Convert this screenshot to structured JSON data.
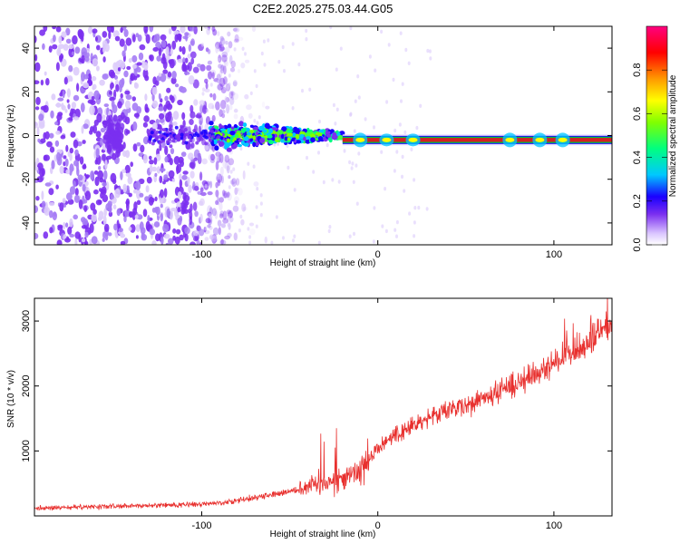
{
  "figure": {
    "title": "C2E2.2025.275.03.44.G05"
  },
  "colors": {
    "snr_line": "#e8302e",
    "spectro_violet": "#7b2ff0",
    "spectro_core": "#d42020",
    "spectro_ring": "#00c040",
    "frame": "#000000",
    "background": "#ffffff"
  },
  "chart_data": [
    {
      "type": "heatmap",
      "xlabel": "Height of straight line (km)",
      "ylabel": "Frequency (Hz)",
      "xlim": [
        -195,
        133
      ],
      "ylim": [
        -50,
        50
      ],
      "xticks": [
        -100,
        0,
        100
      ],
      "yticks": [
        -40,
        -20,
        0,
        20,
        40
      ],
      "colorbar": {
        "label": "Normalized spectral amplitude",
        "range": [
          0,
          1
        ],
        "ticks": [
          "0.0",
          "0.2",
          "0.4",
          "0.6",
          "0.8"
        ],
        "tick_values": [
          0.0,
          0.2,
          0.4,
          0.6,
          0.8
        ],
        "colormap": "rainbow (white, violet, blue, cyan, green, yellow, orange, red, magenta)"
      },
      "features": [
        {
          "x_range": [
            -195,
            -80
          ],
          "description": "diffuse low-amplitude noise spread over all frequencies",
          "amplitude": 0.05
        },
        {
          "x_range": [
            -95,
            -20
          ],
          "description": "band near 0 Hz",
          "freq_center": 0,
          "amplitude_max": 0.45
        },
        {
          "x_range": [
            -20,
            133
          ],
          "description": "narrow strong carrier near -2 Hz",
          "freq_center": -2,
          "amplitude_max": 1.0
        }
      ],
      "legend": "colorbar right"
    },
    {
      "type": "line",
      "xlabel": "Height of straight line (km)",
      "ylabel": "SNR (10 * v/v)",
      "xlim": [
        -195,
        133
      ],
      "ylim": [
        0,
        3350
      ],
      "xticks": [
        -100,
        0,
        100
      ],
      "yticks": [
        1000,
        2000,
        3000
      ],
      "series": [
        {
          "x": [
            -195,
            -180,
            -160,
            -140,
            -120,
            -100,
            -90,
            -80,
            -70,
            -60,
            -50,
            -40,
            -30,
            -20,
            -10,
            0,
            10,
            20,
            30,
            40,
            50,
            60,
            70,
            80,
            90,
            100,
            110,
            120,
            125,
            130,
            133
          ],
          "values": [
            120,
            125,
            140,
            150,
            165,
            180,
            200,
            240,
            280,
            330,
            380,
            450,
            520,
            560,
            720,
            1050,
            1250,
            1400,
            1530,
            1620,
            1700,
            1800,
            1920,
            2060,
            2200,
            2350,
            2480,
            2650,
            2780,
            2900,
            2950
          ]
        }
      ],
      "grid": false
    }
  ]
}
